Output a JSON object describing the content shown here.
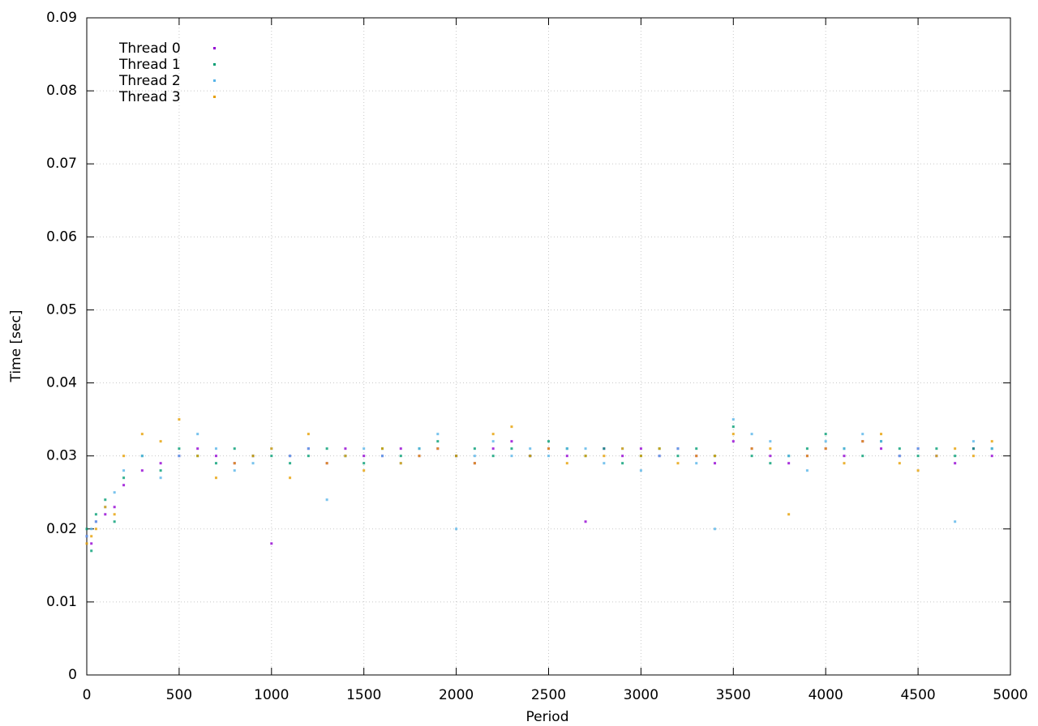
{
  "chart_data": {
    "type": "scatter",
    "xlabel": "Period",
    "ylabel": "Time [sec]",
    "x": [
      0,
      25,
      50,
      100,
      150,
      200,
      300,
      400,
      500,
      600,
      700,
      800,
      900,
      1000,
      1100,
      1200,
      1300,
      1400,
      1500,
      1600,
      1700,
      1800,
      1900,
      2000,
      2100,
      2200,
      2300,
      2400,
      2500,
      2600,
      2700,
      2800,
      2900,
      3000,
      3100,
      3200,
      3300,
      3400,
      3500,
      3600,
      3700,
      3800,
      3900,
      4000,
      4100,
      4200,
      4300,
      4400,
      4500,
      4600,
      4700,
      4800,
      4900
    ],
    "series": [
      {
        "name": "Thread 0",
        "color": "#9400d3",
        "values": [
          0.019,
          0.018,
          0.021,
          0.022,
          0.023,
          0.026,
          0.028,
          0.029,
          0.03,
          0.031,
          0.03,
          0.029,
          0.03,
          0.018,
          0.03,
          0.031,
          0.029,
          0.031,
          0.03,
          0.03,
          0.031,
          0.03,
          0.031,
          0.03,
          0.029,
          0.031,
          0.032,
          0.03,
          0.031,
          0.03,
          0.021,
          0.031,
          0.03,
          0.031,
          0.03,
          0.031,
          0.03,
          0.029,
          0.032,
          0.031,
          0.03,
          0.029,
          0.03,
          0.031,
          0.03,
          0.032,
          0.031,
          0.03,
          0.031,
          0.03,
          0.029,
          0.031,
          0.03
        ]
      },
      {
        "name": "Thread 1",
        "color": "#009e73",
        "values": [
          0.02,
          0.017,
          0.022,
          0.024,
          0.021,
          0.027,
          0.03,
          0.028,
          0.031,
          0.03,
          0.029,
          0.031,
          0.03,
          0.03,
          0.029,
          0.03,
          0.031,
          0.03,
          0.029,
          0.031,
          0.03,
          0.031,
          0.032,
          0.03,
          0.031,
          0.03,
          0.031,
          0.03,
          0.032,
          0.031,
          0.03,
          0.031,
          0.029,
          0.03,
          0.031,
          0.03,
          0.031,
          0.03,
          0.034,
          0.03,
          0.029,
          0.03,
          0.031,
          0.033,
          0.031,
          0.03,
          0.032,
          0.031,
          0.03,
          0.031,
          0.03,
          0.031,
          0.031
        ]
      },
      {
        "name": "Thread 2",
        "color": "#56b4e9",
        "values": [
          0.019,
          0.02,
          0.021,
          0.023,
          0.025,
          0.028,
          0.03,
          0.027,
          0.03,
          0.033,
          0.031,
          0.028,
          0.029,
          0.031,
          0.03,
          0.031,
          0.024,
          0.03,
          0.031,
          0.03,
          0.029,
          0.031,
          0.033,
          0.02,
          0.03,
          0.032,
          0.03,
          0.031,
          0.03,
          0.031,
          0.031,
          0.029,
          0.031,
          0.028,
          0.03,
          0.031,
          0.029,
          0.02,
          0.035,
          0.033,
          0.032,
          0.03,
          0.028,
          0.032,
          0.031,
          0.033,
          0.032,
          0.03,
          0.031,
          0.03,
          0.021,
          0.032,
          0.031
        ]
      },
      {
        "name": "Thread 3",
        "color": "#e69f00",
        "values": [
          0.018,
          0.019,
          0.02,
          0.023,
          0.022,
          0.03,
          0.033,
          0.032,
          0.035,
          0.03,
          0.027,
          0.029,
          0.03,
          0.031,
          0.027,
          0.033,
          0.029,
          0.03,
          0.028,
          0.031,
          0.029,
          0.03,
          0.031,
          0.03,
          0.029,
          0.033,
          0.034,
          0.03,
          0.031,
          0.029,
          0.03,
          0.03,
          0.031,
          0.03,
          0.031,
          0.029,
          0.03,
          0.03,
          0.033,
          0.031,
          0.031,
          0.022,
          0.03,
          0.031,
          0.029,
          0.032,
          0.033,
          0.029,
          0.028,
          0.03,
          0.031,
          0.03,
          0.032
        ]
      }
    ],
    "xlim": [
      0,
      5000
    ],
    "xticks": [
      0,
      500,
      1000,
      1500,
      2000,
      2500,
      3000,
      3500,
      4000,
      4500,
      5000
    ],
    "ylim": [
      0,
      0.09
    ],
    "yticks": [
      0,
      0.01,
      0.02,
      0.03,
      0.04,
      0.05,
      0.06,
      0.07,
      0.08,
      0.09
    ],
    "grid": true,
    "legend": "top-left"
  }
}
